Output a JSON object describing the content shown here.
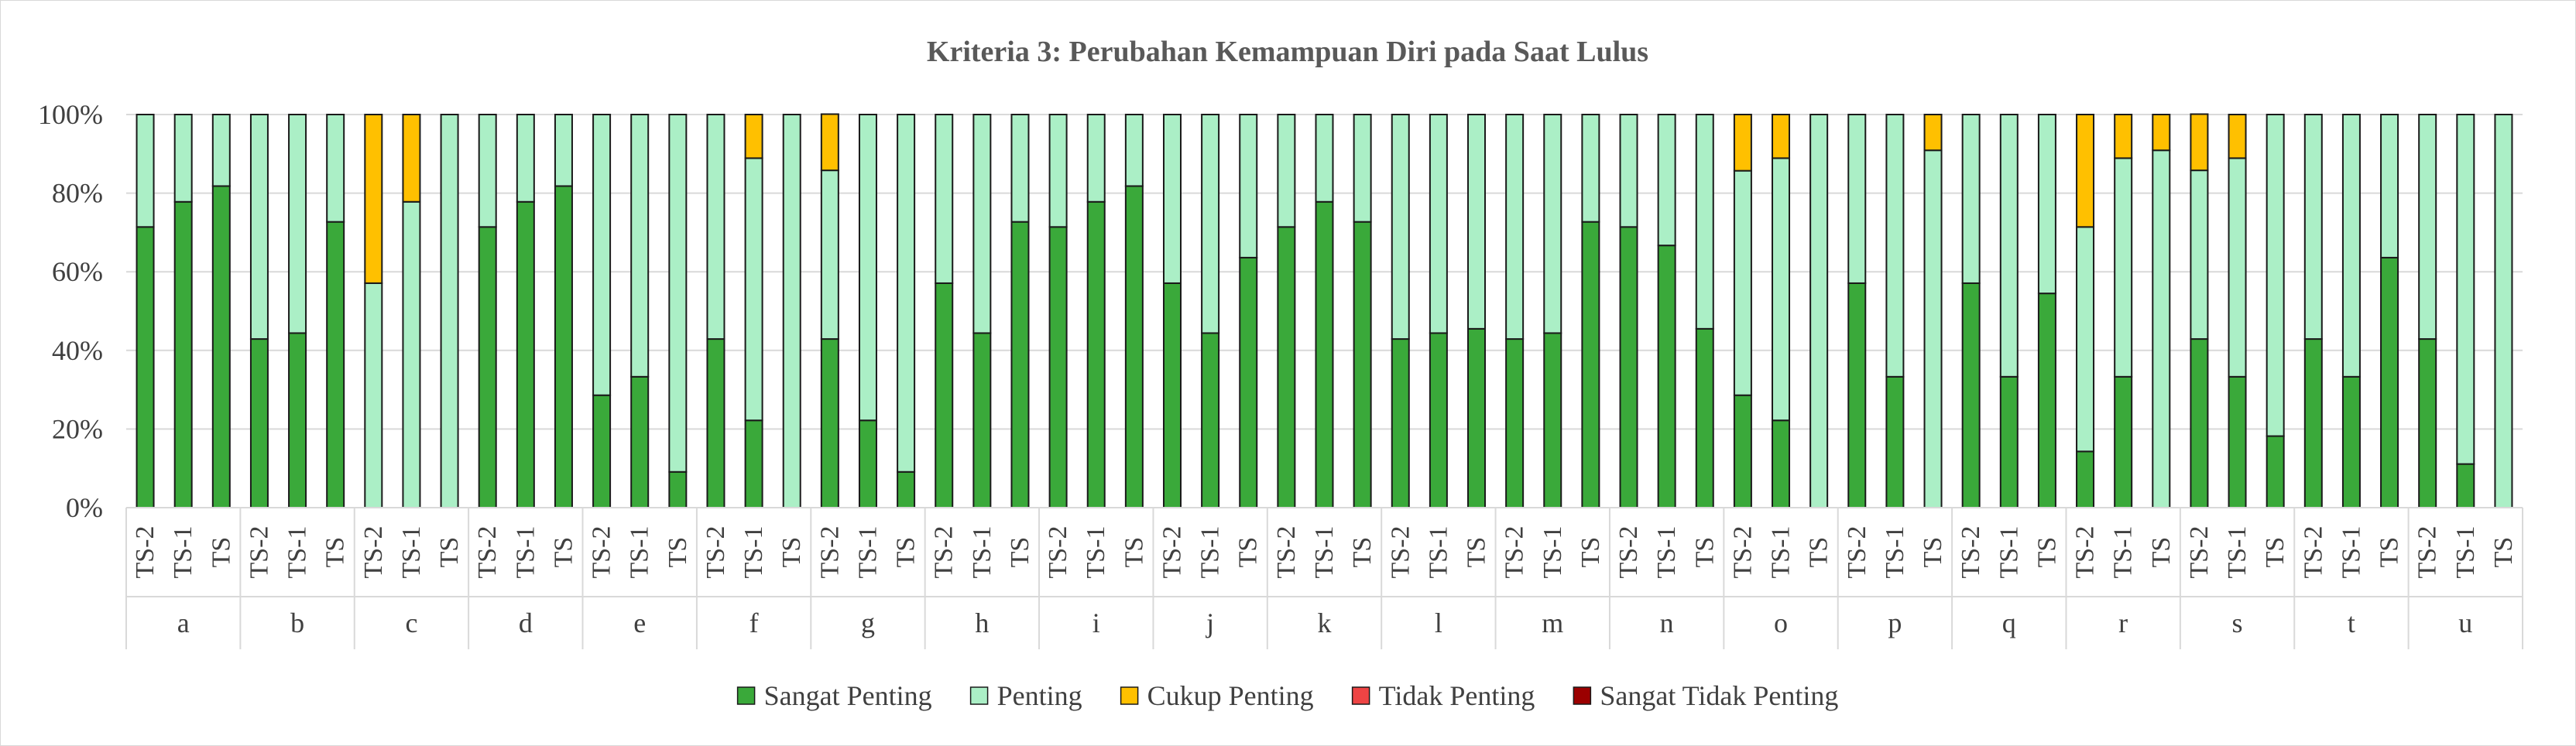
{
  "chart_data": {
    "type": "stacked-bar-100",
    "title": "Kriteria 3: Perubahan Kemampuan Diri pada Saat Lulus",
    "y_ticks": [
      "0%",
      "20%",
      "40%",
      "60%",
      "80%",
      "100%"
    ],
    "ylim": [
      0,
      100
    ],
    "grid": true,
    "legend_position": "bottom",
    "sub_categories": [
      "TS-2",
      "TS-1",
      "TS"
    ],
    "groups": [
      "a",
      "b",
      "c",
      "d",
      "e",
      "f",
      "g",
      "h",
      "i",
      "j",
      "k",
      "l",
      "m",
      "n",
      "o",
      "p",
      "q",
      "r",
      "s",
      "t",
      "u"
    ],
    "series": [
      {
        "name": "Sangat Penting",
        "color": "#3aa93a"
      },
      {
        "name": "Penting",
        "color": "#abefc6"
      },
      {
        "name": "Cukup Penting",
        "color": "#ffc000"
      },
      {
        "name": "Tidak Penting",
        "color": "#ee4444"
      },
      {
        "name": "Sangat Tidak Penting",
        "color": "#9b0000"
      }
    ],
    "values": [
      [
        71.4,
        28.6,
        0,
        0,
        0
      ],
      [
        77.8,
        22.2,
        0,
        0,
        0
      ],
      [
        81.8,
        18.2,
        0,
        0,
        0
      ],
      [
        42.9,
        57.1,
        0,
        0,
        0
      ],
      [
        44.4,
        55.6,
        0,
        0,
        0
      ],
      [
        72.7,
        27.3,
        0,
        0,
        0
      ],
      [
        0,
        57.1,
        42.9,
        0,
        0
      ],
      [
        0,
        77.8,
        22.2,
        0,
        0
      ],
      [
        0,
        100,
        0,
        0,
        0
      ],
      [
        71.4,
        28.6,
        0,
        0,
        0
      ],
      [
        77.8,
        22.2,
        0,
        0,
        0
      ],
      [
        81.8,
        18.2,
        0,
        0,
        0
      ],
      [
        28.6,
        71.4,
        0,
        0,
        0
      ],
      [
        33.3,
        66.7,
        0,
        0,
        0
      ],
      [
        9.1,
        90.9,
        0,
        0,
        0
      ],
      [
        42.9,
        57.1,
        0,
        0,
        0
      ],
      [
        22.2,
        66.7,
        11.1,
        0,
        0
      ],
      [
        0,
        100,
        0,
        0,
        0
      ],
      [
        42.9,
        42.9,
        14.3,
        0,
        0
      ],
      [
        22.2,
        77.8,
        0,
        0,
        0
      ],
      [
        9.1,
        90.9,
        0,
        0,
        0
      ],
      [
        57.1,
        42.9,
        0,
        0,
        0
      ],
      [
        44.4,
        55.6,
        0,
        0,
        0
      ],
      [
        72.7,
        27.3,
        0,
        0,
        0
      ],
      [
        71.4,
        28.6,
        0,
        0,
        0
      ],
      [
        77.8,
        22.2,
        0,
        0,
        0
      ],
      [
        81.8,
        18.2,
        0,
        0,
        0
      ],
      [
        57.1,
        42.9,
        0,
        0,
        0
      ],
      [
        44.4,
        55.6,
        0,
        0,
        0
      ],
      [
        63.6,
        36.4,
        0,
        0,
        0
      ],
      [
        71.4,
        28.6,
        0,
        0,
        0
      ],
      [
        77.8,
        22.2,
        0,
        0,
        0
      ],
      [
        72.7,
        27.3,
        0,
        0,
        0
      ],
      [
        42.9,
        57.1,
        0,
        0,
        0
      ],
      [
        44.4,
        55.6,
        0,
        0,
        0
      ],
      [
        45.5,
        54.5,
        0,
        0,
        0
      ],
      [
        42.9,
        57.1,
        0,
        0,
        0
      ],
      [
        44.4,
        55.6,
        0,
        0,
        0
      ],
      [
        72.7,
        27.3,
        0,
        0,
        0
      ],
      [
        71.4,
        28.6,
        0,
        0,
        0
      ],
      [
        66.7,
        33.3,
        0,
        0,
        0
      ],
      [
        45.5,
        54.5,
        0,
        0,
        0
      ],
      [
        28.6,
        57.1,
        14.3,
        0,
        0
      ],
      [
        22.2,
        66.7,
        11.1,
        0,
        0
      ],
      [
        0,
        100,
        0,
        0,
        0
      ],
      [
        57.1,
        42.9,
        0,
        0,
        0
      ],
      [
        33.3,
        66.7,
        0,
        0,
        0
      ],
      [
        0,
        90.9,
        9.1,
        0,
        0
      ],
      [
        57.1,
        42.9,
        0,
        0,
        0
      ],
      [
        33.3,
        66.7,
        0,
        0,
        0
      ],
      [
        54.5,
        45.5,
        0,
        0,
        0
      ],
      [
        14.3,
        57.1,
        28.6,
        0,
        0
      ],
      [
        33.3,
        55.6,
        11.1,
        0,
        0
      ],
      [
        0,
        90.9,
        9.1,
        0,
        0
      ],
      [
        42.9,
        42.9,
        14.3,
        0,
        0
      ],
      [
        33.3,
        55.6,
        11.1,
        0,
        0
      ],
      [
        18.2,
        81.8,
        0,
        0,
        0
      ],
      [
        42.9,
        57.1,
        0,
        0,
        0
      ],
      [
        33.3,
        66.7,
        0,
        0,
        0
      ],
      [
        63.6,
        36.4,
        0,
        0,
        0
      ],
      [
        42.9,
        57.1,
        0,
        0,
        0
      ],
      [
        11.1,
        88.9,
        0,
        0,
        0
      ],
      [
        0,
        100,
        0,
        0,
        0
      ]
    ]
  }
}
